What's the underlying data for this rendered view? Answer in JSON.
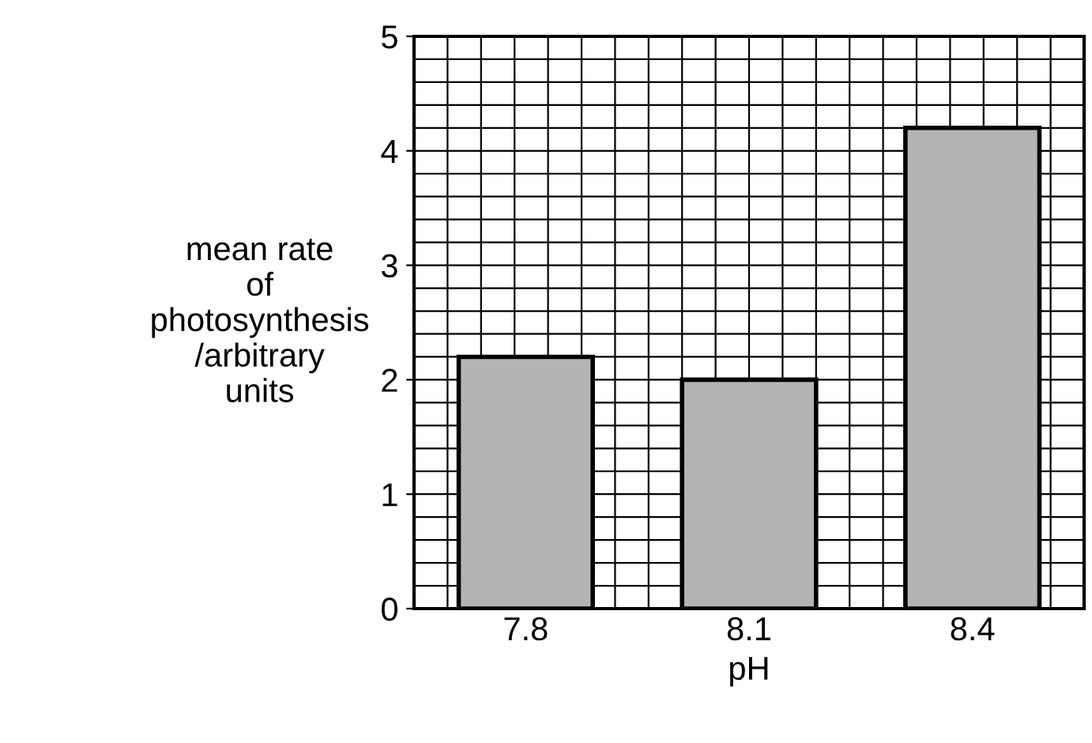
{
  "chart_data": {
    "type": "bar",
    "xlabel": "pH",
    "ylabel": "mean rate\nof\nphotosynthesis\n/arbitrary\nunits",
    "categories": [
      "7.8",
      "8.1",
      "8.4"
    ],
    "values": [
      2.2,
      2.0,
      4.2
    ],
    "color": "#b4b4b4",
    "ylim": [
      0,
      5
    ],
    "yticks": [
      0,
      1,
      2,
      3,
      4,
      5
    ],
    "grid": true
  }
}
